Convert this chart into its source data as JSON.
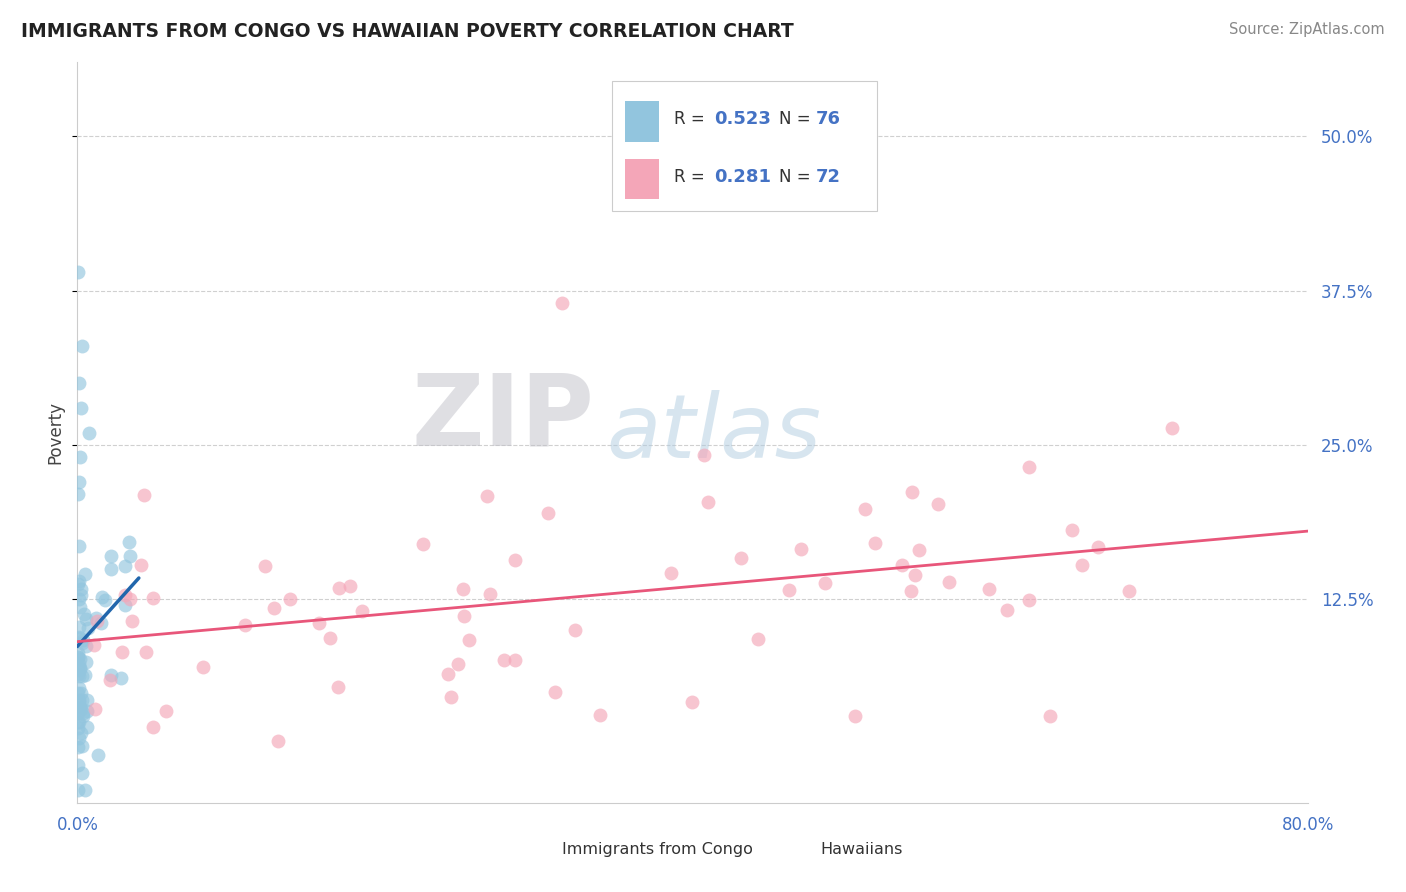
{
  "title": "IMMIGRANTS FROM CONGO VS HAWAIIAN POVERTY CORRELATION CHART",
  "source": "Source: ZipAtlas.com",
  "ylabel": "Poverty",
  "ytick_labels": [
    "12.5%",
    "25.0%",
    "37.5%",
    "50.0%"
  ],
  "ytick_values": [
    0.125,
    0.25,
    0.375,
    0.5
  ],
  "xlim": [
    0.0,
    0.8
  ],
  "ylim": [
    -0.04,
    0.56
  ],
  "legend_r1": "0.523",
  "legend_n1": "76",
  "legend_r2": "0.281",
  "legend_n2": "72",
  "legend_label1": "Immigrants from Congo",
  "legend_label2": "Hawaiians",
  "blue_color": "#92c5de",
  "pink_color": "#f4a6b8",
  "blue_line_color": "#2166ac",
  "pink_line_color": "#e8567a",
  "background_color": "#ffffff",
  "tick_color": "#4472c4",
  "text_color": "#222222",
  "source_color": "#888888",
  "grid_color": "#d0d0d0"
}
